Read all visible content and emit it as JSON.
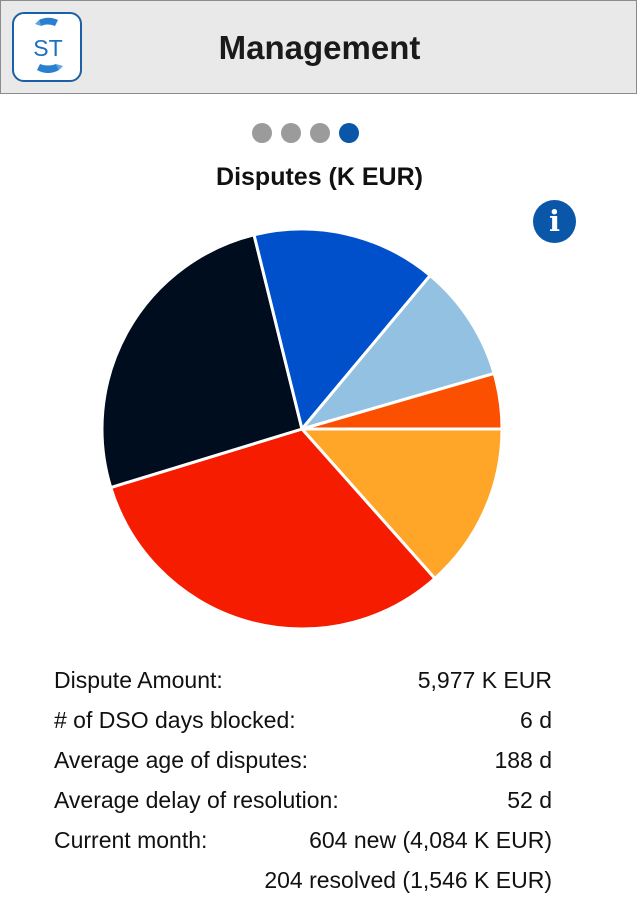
{
  "header": {
    "title": "Management",
    "logo_text": "ST",
    "logo_icon": "st-logo-icon"
  },
  "pager": {
    "count": 4,
    "active_index": 3
  },
  "info_button": {
    "icon": "info-icon",
    "glyph": "i"
  },
  "colors": {
    "accent": "#0a56a8",
    "header_bg": "#e9e9e9",
    "dot_inactive": "#9b9b9b"
  },
  "chart_data": {
    "type": "pie",
    "title": "Disputes (K EUR)",
    "legend": "none",
    "slice_border": "#ffffff",
    "slices": [
      {
        "value": 13.5,
        "color": "#ffa629"
      },
      {
        "value": 32.0,
        "color": "#f51c00"
      },
      {
        "value": 26.0,
        "color": "#000d1f"
      },
      {
        "value": 15.0,
        "color": "#0050cc"
      },
      {
        "value": 9.5,
        "color": "#93c1e1"
      },
      {
        "value": 4.5,
        "color": "#fa5000"
      }
    ]
  },
  "stats": [
    {
      "label": "Dispute Amount:",
      "value": "5,977 K EUR"
    },
    {
      "label": "# of DSO days blocked:",
      "value": "6 d"
    },
    {
      "label": "Average age of disputes:",
      "value": "188 d"
    },
    {
      "label": "Average delay of resolution:",
      "value": "52 d"
    },
    {
      "label": "Current month:",
      "value": "604 new (4,084 K EUR)"
    },
    {
      "label": "",
      "value": "204 resolved (1,546 K EUR)"
    }
  ]
}
